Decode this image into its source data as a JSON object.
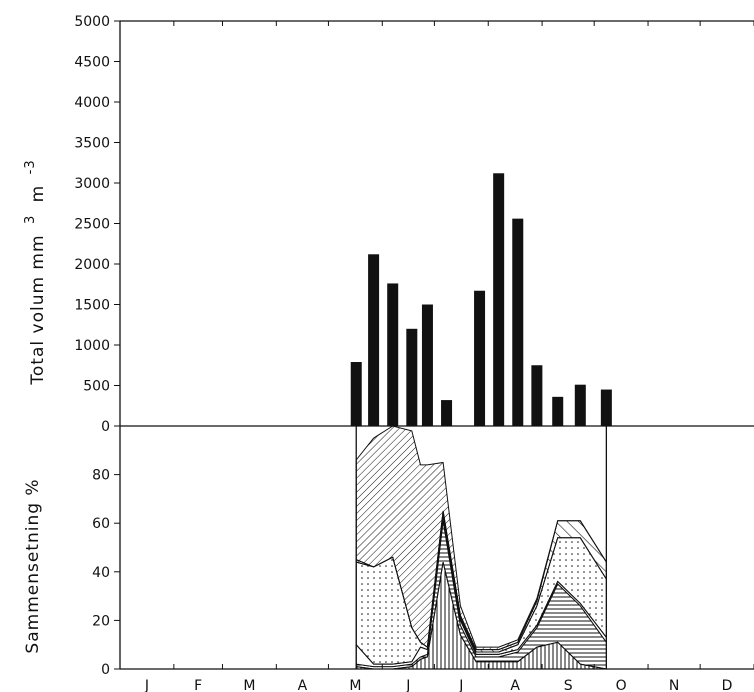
{
  "chart_data": [
    {
      "type": "bar",
      "ylabel": "Total volum mm 3 m -3",
      "ylabel_main": "Total volum mm",
      "ylabel_sup1": "3",
      "ylabel_mid": "m",
      "ylabel_sup2": "-3",
      "ylim": [
        0,
        5000
      ],
      "yticks": [
        "0",
        "500",
        "1000",
        "1500",
        "2000",
        "2500",
        "3000",
        "3500",
        "4000",
        "4500",
        "5000"
      ],
      "x_axis": "month (day of year)",
      "bars": [
        {
          "x": 136,
          "value": 790
        },
        {
          "x": 146,
          "value": 2120
        },
        {
          "x": 157,
          "value": 1760
        },
        {
          "x": 168,
          "value": 1200
        },
        {
          "x": 177,
          "value": 1500
        },
        {
          "x": 188,
          "value": 320
        },
        {
          "x": 207,
          "value": 1670
        },
        {
          "x": 218,
          "value": 3120
        },
        {
          "x": 229,
          "value": 2560
        },
        {
          "x": 240,
          "value": 750
        },
        {
          "x": 252,
          "value": 360
        },
        {
          "x": 265,
          "value": 510
        },
        {
          "x": 280,
          "value": 450
        }
      ]
    },
    {
      "type": "area",
      "stacked": true,
      "ylabel": "Sammensetning %",
      "ylim": [
        0,
        100
      ],
      "yticks": [
        "0",
        "20",
        "40",
        "60",
        "80"
      ],
      "x": [
        136,
        146,
        157,
        168,
        173,
        177,
        186,
        196,
        205,
        218,
        229,
        240,
        252,
        265,
        280
      ],
      "series": [
        {
          "pattern": "vertical-lines",
          "values": [
            1,
            0,
            0,
            1,
            4,
            5,
            44,
            14,
            3,
            3,
            3,
            9,
            11,
            2,
            0
          ]
        },
        {
          "pattern": "horizontal-lines",
          "values": [
            1,
            1,
            1,
            1,
            1,
            1,
            17,
            4,
            2,
            2,
            4,
            8,
            24,
            24,
            11
          ]
        },
        {
          "pattern": "blank",
          "values": [
            8,
            1,
            1,
            1,
            4,
            2,
            2,
            2,
            1,
            1,
            1,
            1,
            1,
            1,
            2
          ]
        },
        {
          "pattern": "dots",
          "values": [
            34,
            40,
            44,
            14,
            2,
            1,
            1,
            1,
            1,
            1,
            2,
            8,
            18,
            27,
            24
          ]
        },
        {
          "pattern": "wide-diagonal",
          "values": [
            1,
            0,
            0,
            0,
            0,
            0,
            1,
            1,
            1,
            1,
            1,
            2,
            7,
            7,
            7
          ]
        },
        {
          "pattern": "dense-diagonal",
          "values": [
            41,
            53,
            54,
            81,
            73,
            75,
            20,
            4,
            1,
            1,
            1,
            1,
            0,
            0,
            0
          ]
        }
      ]
    }
  ],
  "x_axis": {
    "months": [
      "J",
      "F",
      "M",
      "A",
      "M",
      "J",
      "J",
      "A",
      "S",
      "O",
      "N",
      "D"
    ]
  }
}
